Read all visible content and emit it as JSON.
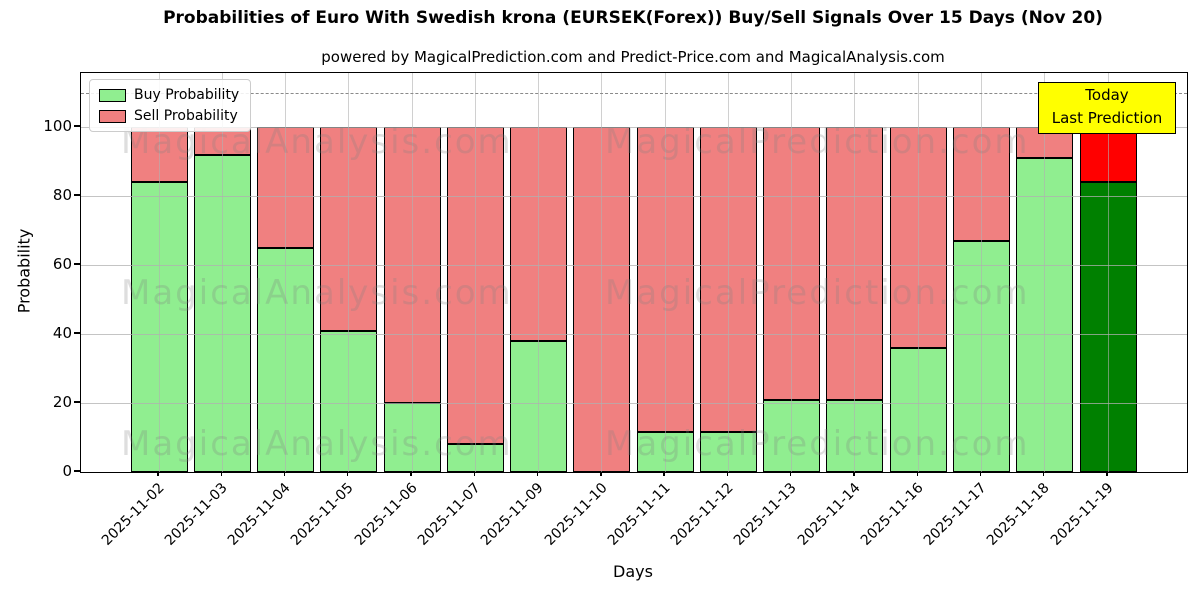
{
  "chart_data": {
    "type": "bar",
    "stacked": true,
    "title": "Probabilities of Euro With Swedish krona (EURSEK(Forex)) Buy/Sell Signals Over 15 Days (Nov 20)",
    "subtitle": "powered by MagicalPrediction.com and Predict-Price.com and MagicalAnalysis.com",
    "xlabel": "Days",
    "ylabel": "Probability",
    "categories": [
      "2025-11-02",
      "2025-11-03",
      "2025-11-04",
      "2025-11-05",
      "2025-11-06",
      "2025-11-07",
      "2025-11-09",
      "2025-11-10",
      "2025-11-11",
      "2025-11-12",
      "2025-11-13",
      "2025-11-14",
      "2025-11-16",
      "2025-11-17",
      "2025-11-18",
      "2025-11-19"
    ],
    "series": [
      {
        "name": "Buy Probability",
        "color": "#90ee90",
        "values": [
          84,
          92,
          65,
          41,
          20,
          8,
          38,
          0,
          11.5,
          11.5,
          21,
          21,
          36,
          67,
          91,
          84
        ]
      },
      {
        "name": "Sell Probability",
        "color": "#f08080",
        "values": [
          16,
          8,
          35,
          59,
          80,
          92,
          62,
          100,
          88.5,
          88.5,
          79,
          79,
          64,
          33,
          9,
          16
        ]
      }
    ],
    "today_highlight": {
      "index": 15,
      "buy_color": "#008000",
      "sell_color": "#ff0000"
    },
    "yticks": [
      0,
      20,
      40,
      60,
      80,
      100
    ],
    "ylim": [
      0,
      115.7
    ],
    "grid": true,
    "dashed_line_y": 110,
    "legend_position": "upper left",
    "annotation": {
      "line1": "Today",
      "line2": "Last Prediction",
      "bg": "#ffff00"
    },
    "watermarks": [
      "MagicalAnalysis.com",
      "MagicalPrediction.com"
    ]
  }
}
